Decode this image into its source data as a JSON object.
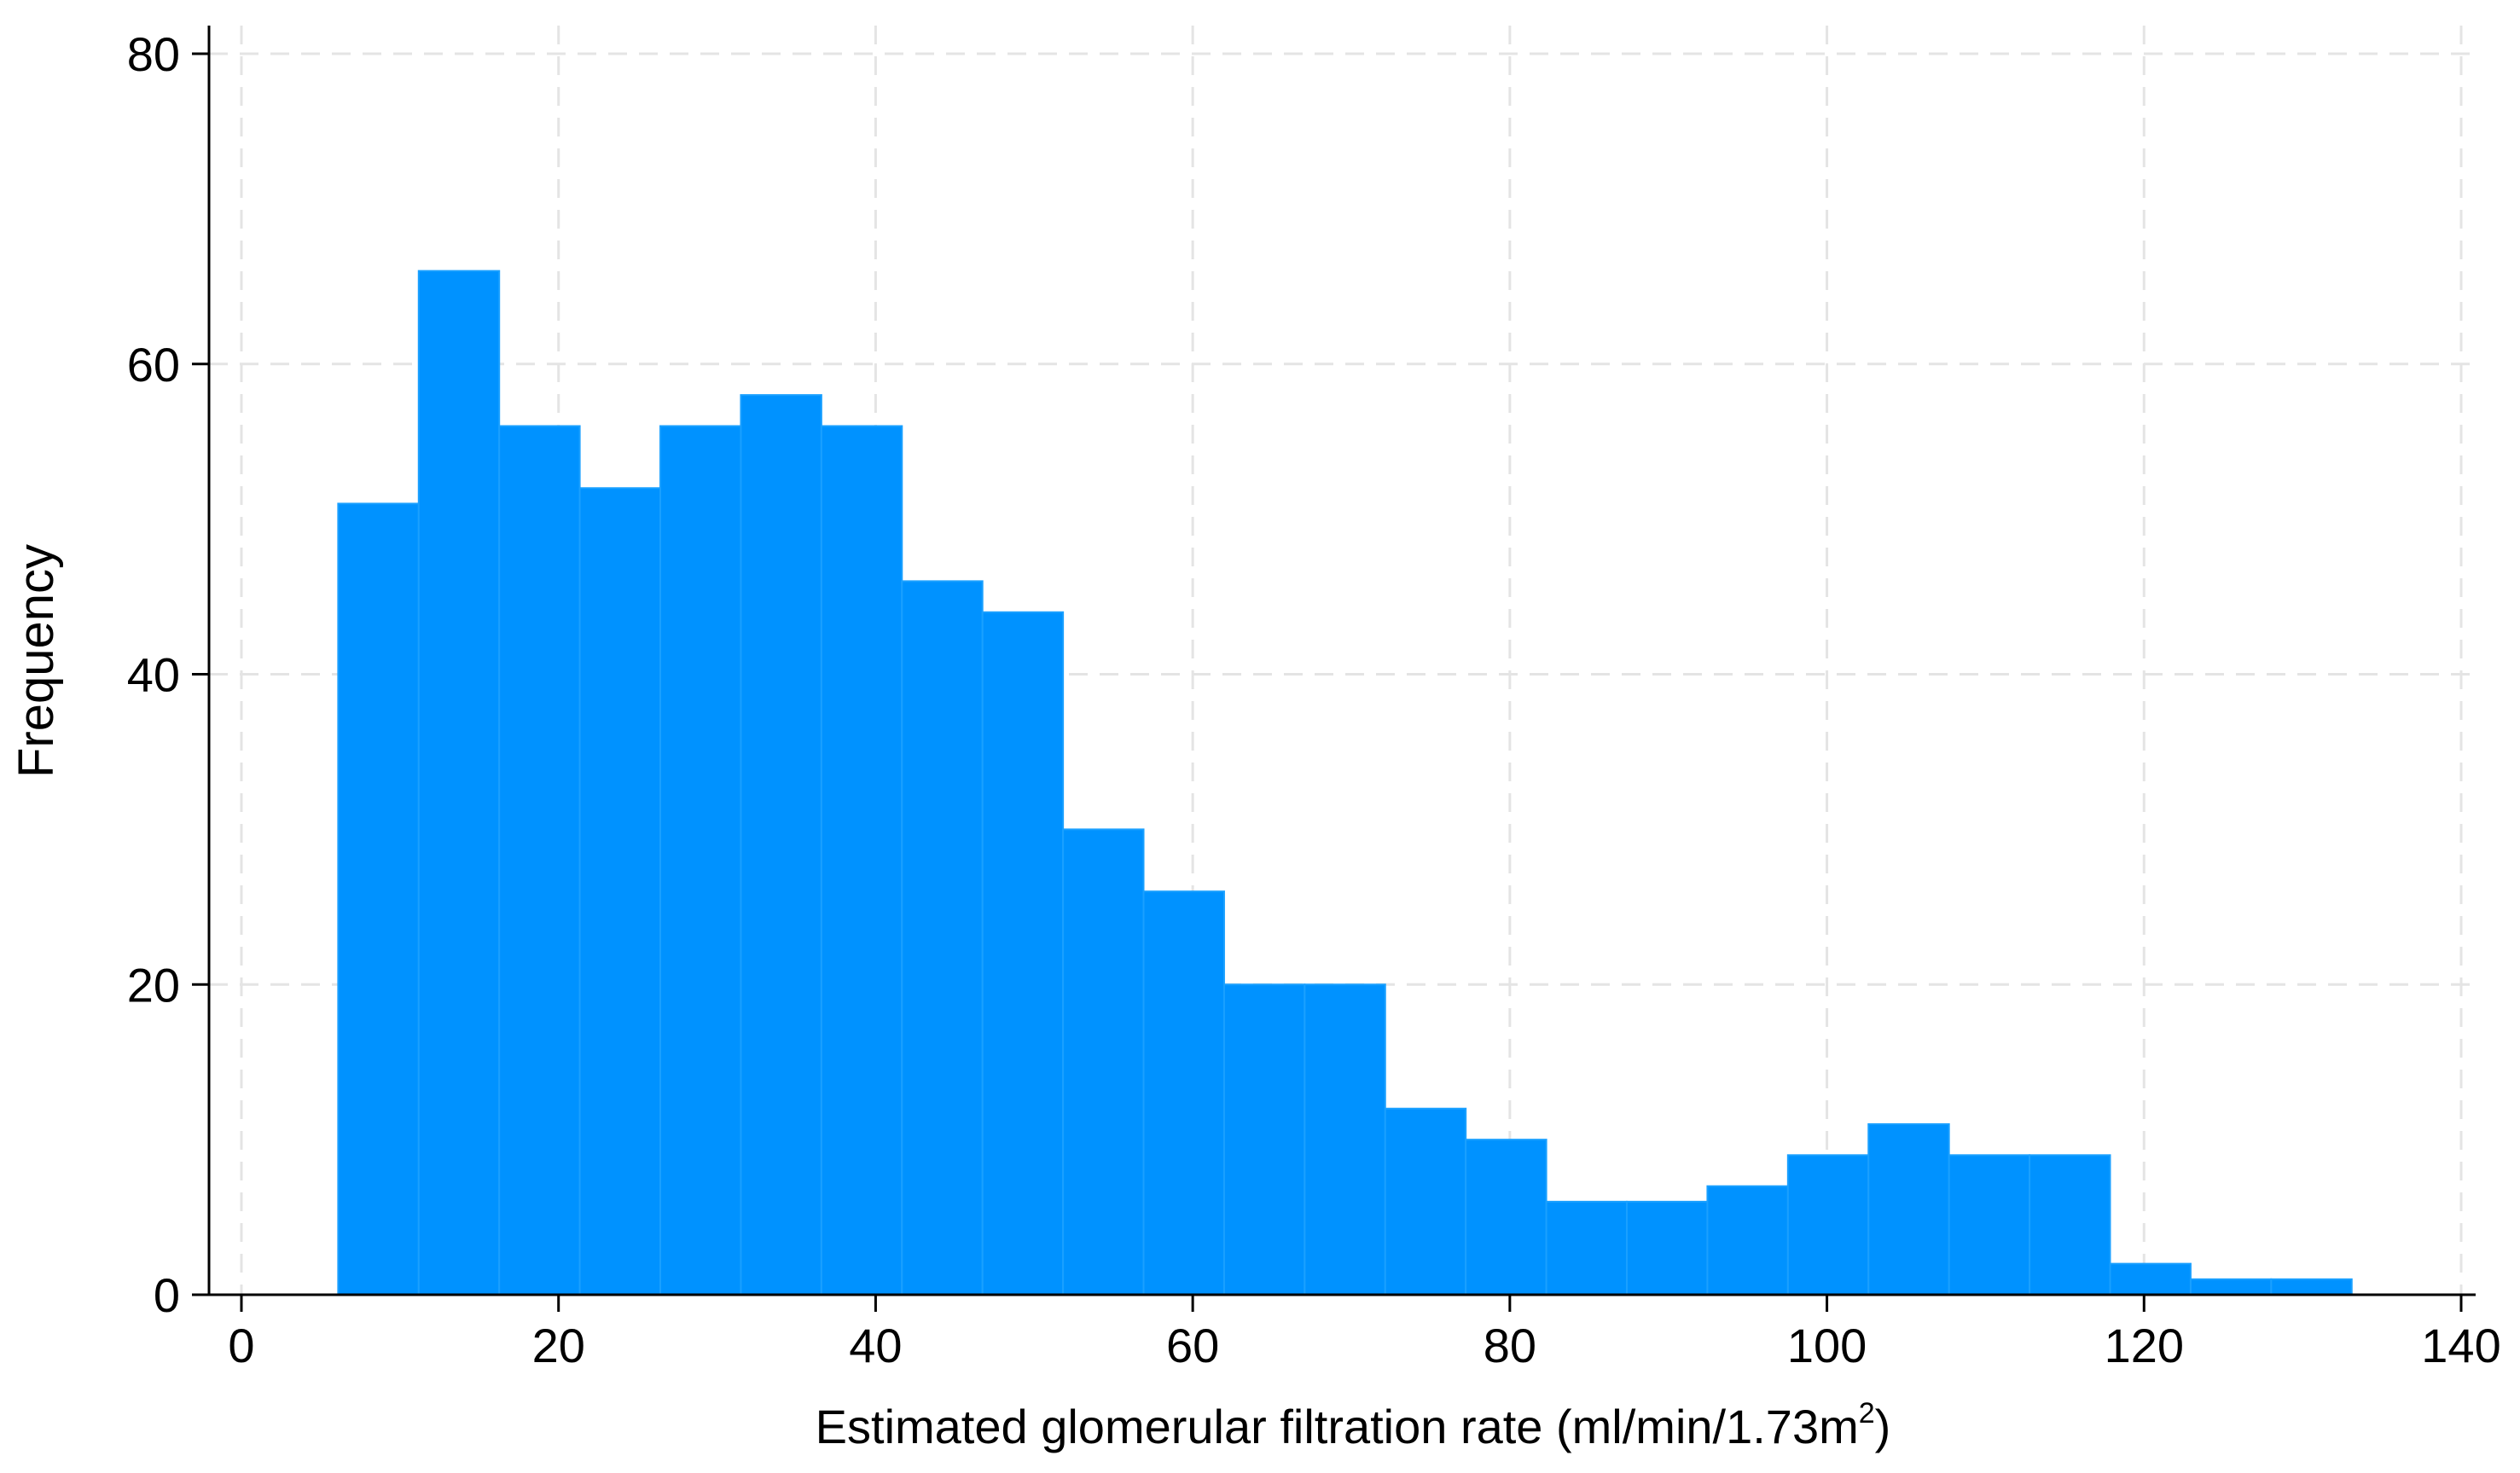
{
  "chart_data": {
    "type": "bar",
    "subtype": "histogram",
    "title": "",
    "xlabel": "Estimated glomerular filtration rate (ml/min/1.73m",
    "xlabel_superscript": "2",
    "xlabel_suffix": ")",
    "ylabel": "Frequency",
    "xlim": [
      0,
      140
    ],
    "ylim": [
      0,
      80
    ],
    "x_ticks": [
      "0",
      "20",
      "40",
      "60",
      "80",
      "100",
      "120",
      "140"
    ],
    "y_ticks": [
      "0",
      "20",
      "40",
      "60",
      "80"
    ],
    "grid": true,
    "legend": "none",
    "bar_color": "#0092ff",
    "bin_start": 6.1,
    "bin_width": 5.08,
    "values": [
      51,
      66,
      56,
      52,
      56,
      58,
      56,
      46,
      44,
      30,
      26,
      20,
      20,
      12,
      10,
      6,
      6,
      7,
      9,
      11,
      9,
      9,
      2,
      1,
      1
    ]
  }
}
